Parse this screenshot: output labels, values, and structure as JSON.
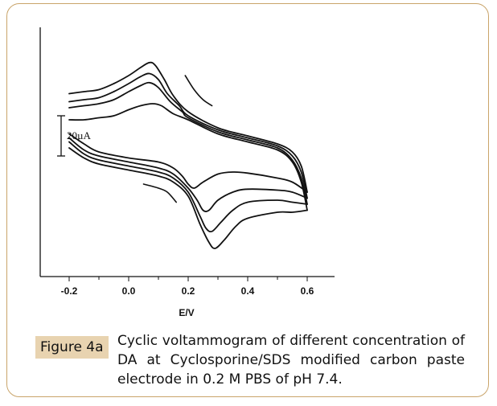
{
  "chart_data": {
    "type": "line",
    "title": "",
    "xlabel": "E/V",
    "ylabel": "",
    "xlim": [
      -0.3,
      0.7
    ],
    "ylim": [
      -60,
      60
    ],
    "x_ticks": [
      "-0.2",
      "0.0",
      "0.2",
      "0.4",
      "0.6"
    ],
    "x_tick_values": [
      -0.2,
      0.0,
      0.2,
      0.4,
      0.6
    ],
    "scale_bar_label": "20µA",
    "scale_bar_value": 20,
    "grid": false,
    "series": [
      {
        "name": "",
        "branches": [
          [
            [
              -0.2,
              31
            ],
            [
              -0.15,
              32
            ],
            [
              -0.1,
              33
            ],
            [
              -0.05,
              36
            ],
            [
              0.0,
              40
            ],
            [
              0.04,
              44
            ],
            [
              0.07,
              46.5
            ],
            [
              0.09,
              45
            ],
            [
              0.12,
              38
            ],
            [
              0.15,
              30
            ],
            [
              0.2,
              22
            ],
            [
              0.3,
              14
            ],
            [
              0.4,
              10
            ],
            [
              0.5,
              6
            ],
            [
              0.55,
              2
            ],
            [
              0.58,
              -5
            ],
            [
              0.6,
              -18
            ]
          ],
          [
            [
              -0.2,
              11
            ],
            [
              -0.15,
              6
            ],
            [
              -0.1,
              2
            ],
            [
              0.0,
              -1
            ],
            [
              0.1,
              -3
            ],
            [
              0.15,
              -6
            ],
            [
              0.18,
              -10
            ],
            [
              0.2,
              -14
            ],
            [
              0.22,
              -16
            ],
            [
              0.25,
              -13
            ],
            [
              0.3,
              -9
            ],
            [
              0.35,
              -8
            ],
            [
              0.4,
              -8.5
            ],
            [
              0.5,
              -11
            ],
            [
              0.55,
              -13
            ],
            [
              0.6,
              -18
            ]
          ]
        ]
      },
      {
        "name": "",
        "branches": [
          [
            [
              -0.2,
              27
            ],
            [
              -0.15,
              28
            ],
            [
              -0.1,
              29
            ],
            [
              -0.05,
              32
            ],
            [
              0.0,
              36
            ],
            [
              0.04,
              39.5
            ],
            [
              0.07,
              41
            ],
            [
              0.1,
              38
            ],
            [
              0.13,
              31
            ],
            [
              0.17,
              25
            ],
            [
              0.2,
              20
            ],
            [
              0.3,
              13
            ],
            [
              0.4,
              9
            ],
            [
              0.5,
              5
            ],
            [
              0.55,
              0
            ],
            [
              0.58,
              -8
            ],
            [
              0.6,
              -21
            ]
          ],
          [
            [
              -0.2,
              9
            ],
            [
              -0.15,
              3
            ],
            [
              -0.1,
              0
            ],
            [
              0.0,
              -3
            ],
            [
              0.1,
              -6
            ],
            [
              0.15,
              -9
            ],
            [
              0.2,
              -16
            ],
            [
              0.23,
              -22
            ],
            [
              0.25,
              -27
            ],
            [
              0.27,
              -27
            ],
            [
              0.3,
              -22
            ],
            [
              0.35,
              -18
            ],
            [
              0.4,
              -16.5
            ],
            [
              0.5,
              -17
            ],
            [
              0.55,
              -18
            ],
            [
              0.6,
              -21
            ]
          ]
        ]
      },
      {
        "name": "",
        "branches": [
          [
            [
              -0.2,
              24
            ],
            [
              -0.15,
              25
            ],
            [
              -0.1,
              26
            ],
            [
              -0.05,
              28
            ],
            [
              0.0,
              32
            ],
            [
              0.04,
              35
            ],
            [
              0.07,
              36.5
            ],
            [
              0.1,
              34
            ],
            [
              0.14,
              27
            ],
            [
              0.18,
              22
            ],
            [
              0.2,
              19
            ],
            [
              0.3,
              12
            ],
            [
              0.4,
              8
            ],
            [
              0.5,
              4
            ],
            [
              0.55,
              -2
            ],
            [
              0.58,
              -11
            ],
            [
              0.6,
              -24
            ]
          ],
          [
            [
              -0.2,
              7
            ],
            [
              -0.15,
              1
            ],
            [
              -0.1,
              -2
            ],
            [
              0.0,
              -5
            ],
            [
              0.1,
              -8
            ],
            [
              0.15,
              -11
            ],
            [
              0.2,
              -18
            ],
            [
              0.24,
              -30
            ],
            [
              0.26,
              -36
            ],
            [
              0.28,
              -37.5
            ],
            [
              0.31,
              -33
            ],
            [
              0.35,
              -27
            ],
            [
              0.4,
              -23
            ],
            [
              0.5,
              -22
            ],
            [
              0.55,
              -23
            ],
            [
              0.6,
              -24
            ]
          ]
        ]
      },
      {
        "name": "",
        "branches": [
          [
            [
              -0.2,
              18
            ],
            [
              -0.15,
              18
            ],
            [
              -0.1,
              19
            ],
            [
              -0.05,
              20
            ],
            [
              0.0,
              23
            ],
            [
              0.04,
              25
            ],
            [
              0.08,
              26
            ],
            [
              0.11,
              25
            ],
            [
              0.15,
              21
            ],
            [
              0.2,
              18
            ],
            [
              0.3,
              11
            ],
            [
              0.4,
              7
            ],
            [
              0.5,
              3
            ],
            [
              0.55,
              -3
            ],
            [
              0.58,
              -13
            ],
            [
              0.6,
              -27
            ]
          ],
          [
            [
              -0.2,
              4
            ],
            [
              -0.15,
              -1
            ],
            [
              -0.1,
              -4
            ],
            [
              0.0,
              -7
            ],
            [
              0.1,
              -10
            ],
            [
              0.15,
              -13
            ],
            [
              0.2,
              -20
            ],
            [
              0.24,
              -34
            ],
            [
              0.27,
              -43
            ],
            [
              0.29,
              -46
            ],
            [
              0.32,
              -42
            ],
            [
              0.36,
              -35
            ],
            [
              0.4,
              -31
            ],
            [
              0.5,
              -28
            ],
            [
              0.55,
              -28
            ],
            [
              0.6,
              -27
            ]
          ]
        ]
      }
    ],
    "fragments": [
      [
        [
          0.19,
          40
        ],
        [
          0.22,
          33
        ],
        [
          0.25,
          28
        ],
        [
          0.28,
          25
        ]
      ],
      [
        [
          0.05,
          -14
        ],
        [
          0.1,
          -16
        ],
        [
          0.13,
          -18
        ],
        [
          0.16,
          -23
        ]
      ]
    ]
  },
  "axis_title": "E/V",
  "caption": {
    "label": "Figure 4a",
    "text": "Cyclic voltammogram of different concentration of DA at Cyclosporine/SDS modified carbon paste electrode in 0.2 M PBS of pH 7.4."
  }
}
